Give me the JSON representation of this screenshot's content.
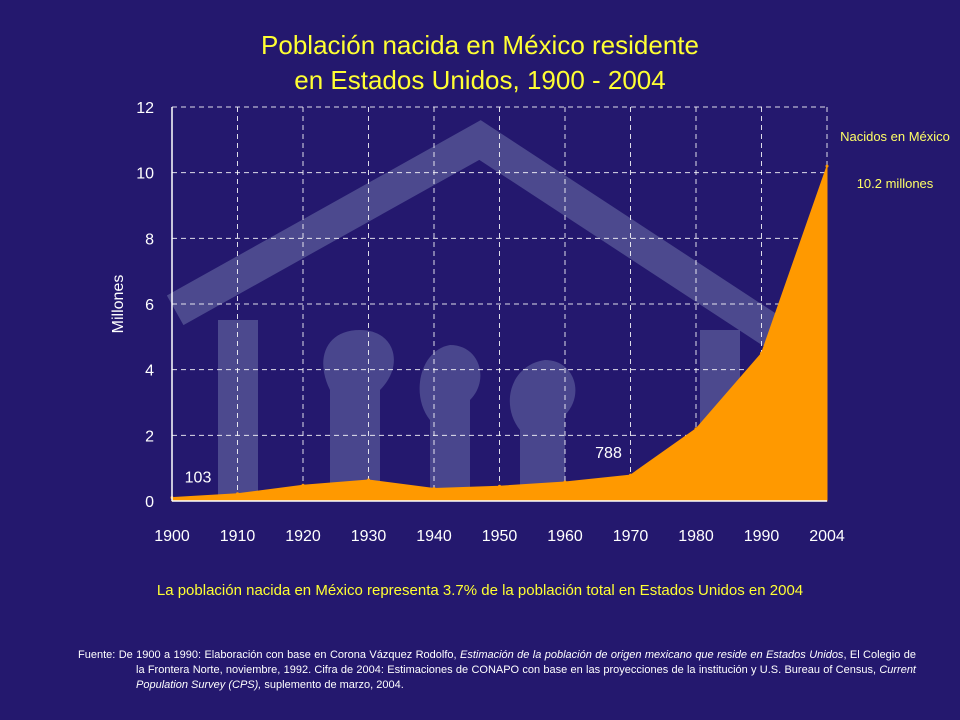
{
  "title_line1": "Población nacida en México residente",
  "title_line2": "en Estados Unidos, 1900 - 2004",
  "side_note": {
    "label": "Nacidos en México",
    "value": "10.2  millones"
  },
  "summary": "La población nacida en México representa 3.7% de la población total en Estados Unidos en 2004",
  "source": {
    "p1": "Fuente: De 1900 a 1990: Elaboración con base en Corona Vázquez Rodolfo, ",
    "i1": "Estimación de la población de origen mexicano que reside en Estados Unidos",
    "p2": ", El Colegio de la Frontera Norte, noviembre, 1992. Cifra de 2004: Estimaciones de CONAPO con base en las proyecciones de la institución y U.S. Bureau  of  Census, ",
    "i2": "Current Population Survey (CPS),",
    "p3": " suplemento de marzo, 2004."
  },
  "colors": {
    "background": "#24186e",
    "area": "#ff9900",
    "title": "#ffff33",
    "watermark": "#5a5a9a"
  },
  "chart_data": {
    "type": "area",
    "ylabel": "Millones",
    "ylim": [
      0,
      12
    ],
    "yticks": [
      0,
      2,
      4,
      6,
      8,
      10,
      12
    ],
    "x": [
      "1900",
      "1910",
      "1920",
      "1930",
      "1940",
      "1950",
      "1960",
      "1970",
      "1980",
      "1990",
      "2004"
    ],
    "values": [
      0.103,
      0.22,
      0.48,
      0.64,
      0.38,
      0.45,
      0.58,
      0.788,
      2.2,
      4.5,
      10.2
    ],
    "grid": true,
    "annotations": [
      {
        "x": "1900",
        "text": "103"
      },
      {
        "x": "1970",
        "text": "788"
      }
    ]
  }
}
